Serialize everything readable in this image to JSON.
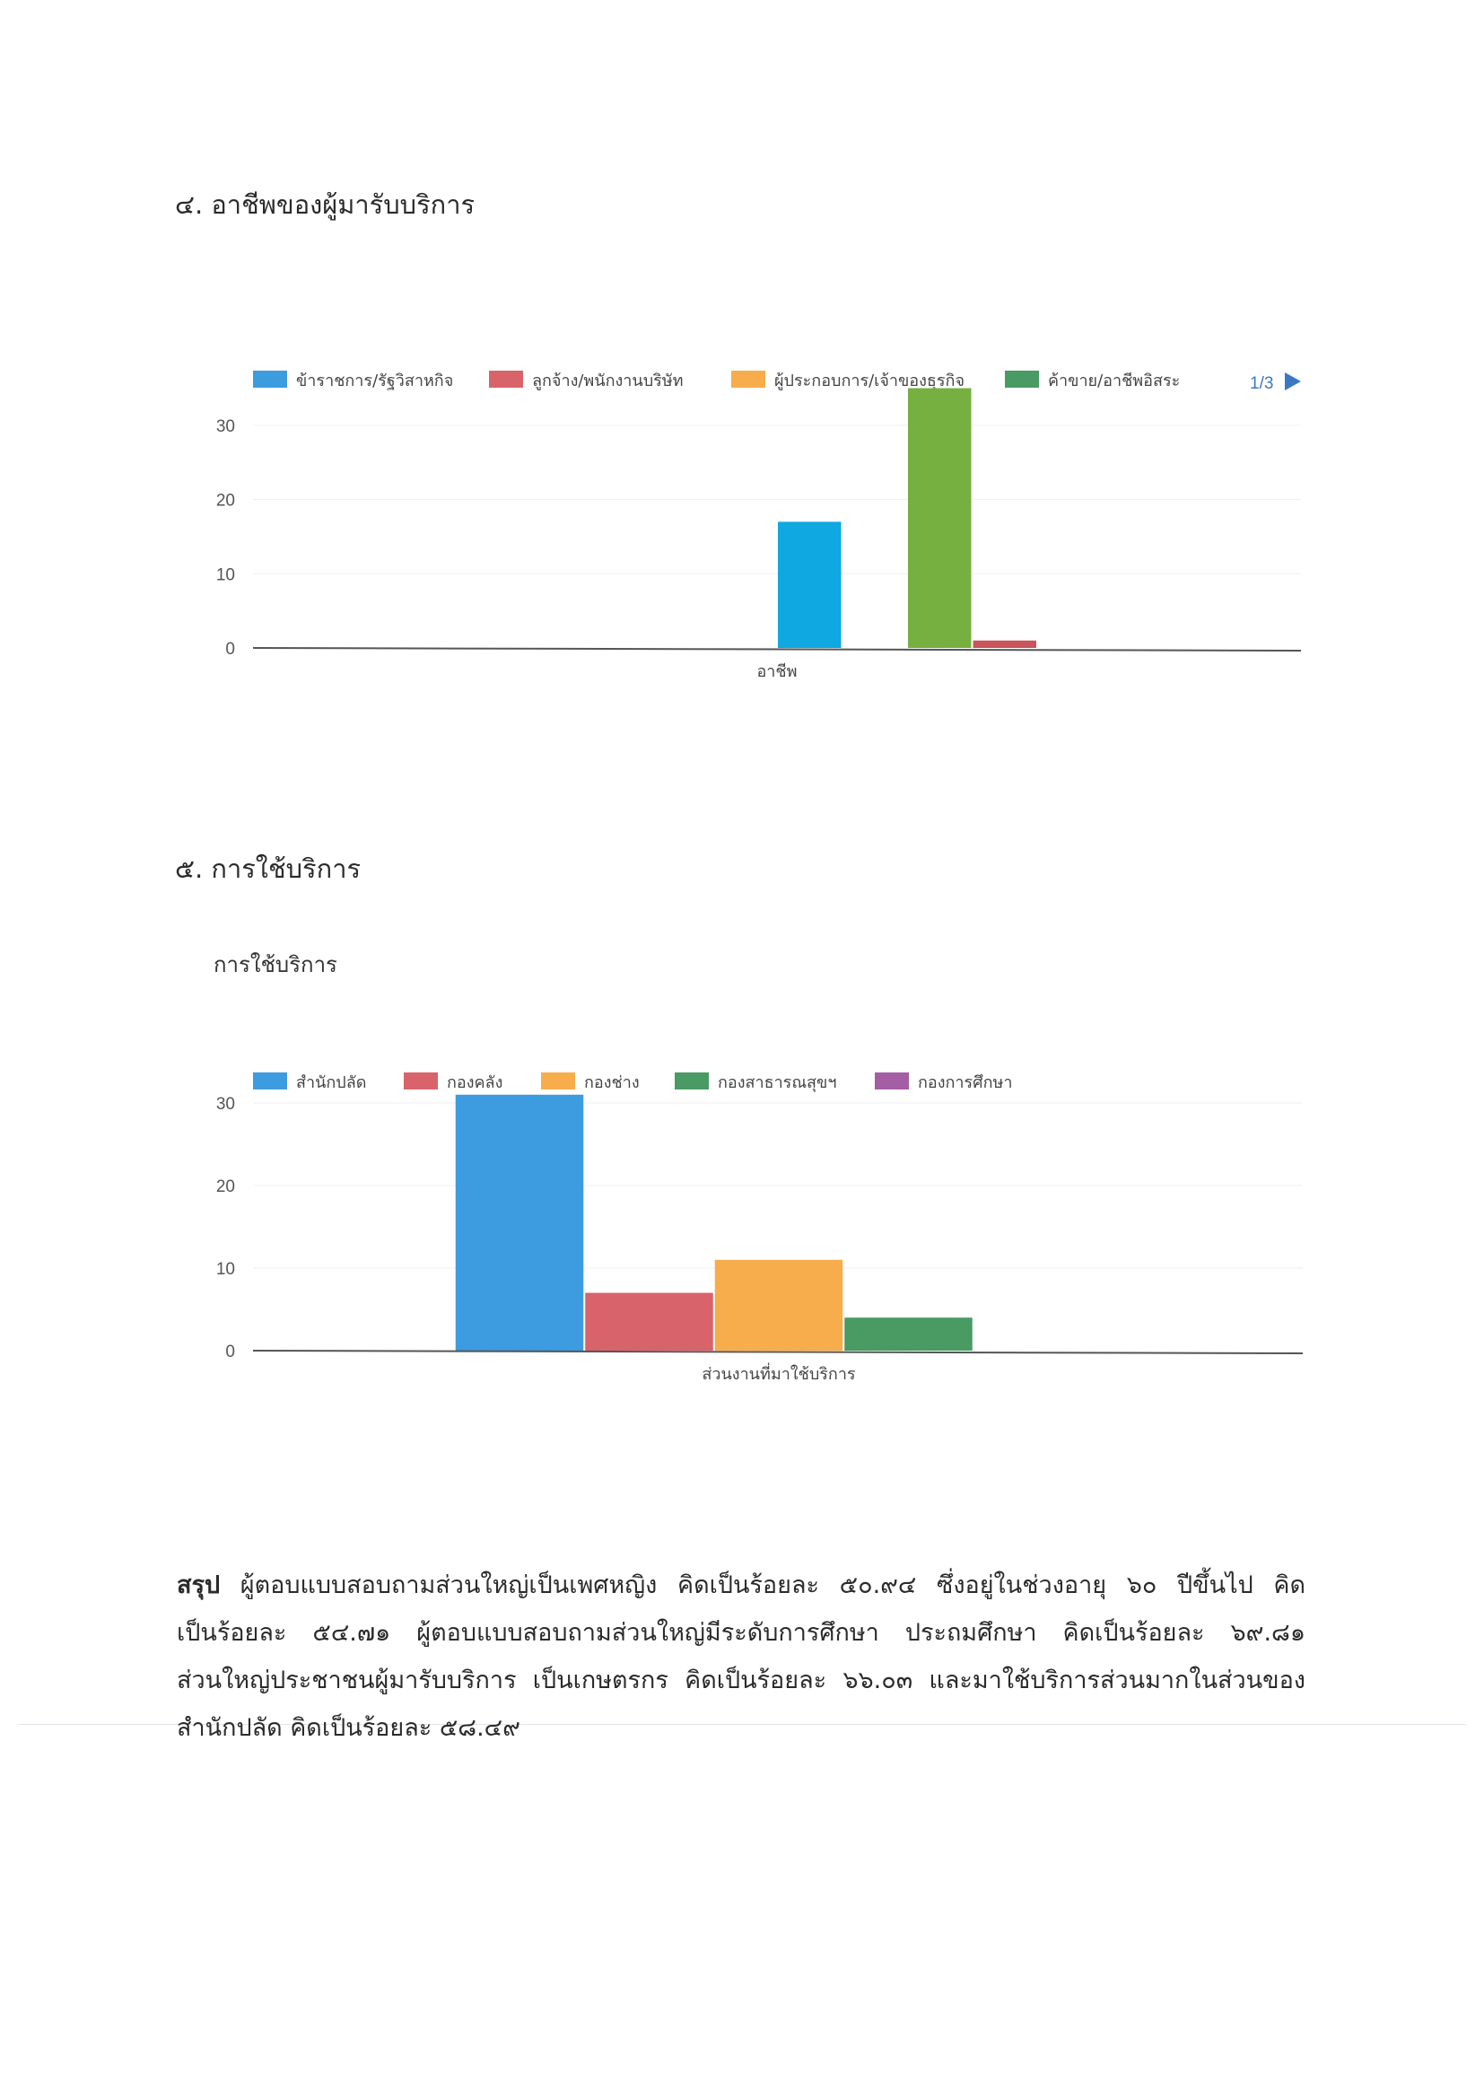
{
  "section4": {
    "title": "๔. อาชีพของผู้มารับบริการ"
  },
  "section5": {
    "title": "๕. การใช้บริการ",
    "chart_title": "การใช้บริการ"
  },
  "chart_data": [
    {
      "type": "bar",
      "title": "",
      "xlabel": "อาชีพ",
      "ylabel": "",
      "categories": [
        "อาชีพ"
      ],
      "ylim": [
        0,
        35
      ],
      "yticks": [
        0,
        10,
        20,
        30
      ],
      "grid": true,
      "legend": {
        "position": "top",
        "entries": [
          "ข้าราชการ/รัฐวิสาหกิจ",
          "ลูกจ้าง/พนักงานบริษัท",
          "ผู้ประกอบการ/เจ้าของธุรกิจ",
          "ค้าขาย/อาชีพอิสระ"
        ],
        "legend_colors": [
          "#3d9be0",
          "#d9636a",
          "#f7ad4b",
          "#4a9a64"
        ],
        "page": "1/3"
      },
      "bars": [
        {
          "value": 0,
          "color": "#3d9be0"
        },
        {
          "value": 0,
          "color": "#d9636a"
        },
        {
          "value": 0,
          "color": "#f7ad4b"
        },
        {
          "value": 0,
          "color": "#4a9a64"
        },
        {
          "value": 17,
          "color": "#0fa8e0"
        },
        {
          "value": 0,
          "color": "#f7ad4b"
        },
        {
          "value": 35,
          "color": "#76b041"
        },
        {
          "value": 1,
          "color": "#c9545c"
        }
      ]
    },
    {
      "type": "bar",
      "title": "การใช้บริการ",
      "xlabel": "ส่วนงานที่มาใช้บริการ",
      "ylabel": "",
      "categories": [
        "ส่วนงานที่มาใช้บริการ"
      ],
      "ylim": [
        0,
        31
      ],
      "yticks": [
        0,
        10,
        20,
        30
      ],
      "grid": true,
      "legend": {
        "position": "top",
        "entries": [
          "สำนักปลัด",
          "กองคลัง",
          "กองช่าง",
          "กองสาธารณสุขฯ",
          "กองการศึกษา"
        ],
        "legend_colors": [
          "#3d9be0",
          "#d9636a",
          "#f7ad4b",
          "#4a9a64",
          "#a45ea4"
        ]
      },
      "bars": [
        {
          "value": 31,
          "color": "#3d9be0"
        },
        {
          "value": 7,
          "color": "#d9636a"
        },
        {
          "value": 11,
          "color": "#f7ad4b"
        },
        {
          "value": 4,
          "color": "#4a9a64"
        },
        {
          "value": 0,
          "color": "#a45ea4"
        }
      ]
    }
  ],
  "summary": {
    "label": "สรุป",
    "lines": [
      " ผู้ตอบแบบสอบถามส่วนใหญ่เป็นเพศหญิง คิดเป็นร้อยละ ๕๐.๙๔ ซึ่งอยู่ในช่วงอายุ ๖๐ ปีขึ้นไป คิด",
      "เป็นร้อยละ ๕๔.๗๑ ผู้ตอบแบบสอบถามส่วนใหญ่มีระดับการศึกษา ประถมศึกษา คิดเป็นร้อยละ ๖๙.๘๑",
      "ส่วนใหญ่ประชาชนผู้มารับบริการ เป็นเกษตรกร คิดเป็นร้อยละ ๖๖.๐๓ และมาใช้บริการส่วนมากในส่วนของ",
      "สำนักปลัด คิดเป็นร้อยละ ๕๘.๔๙"
    ]
  }
}
